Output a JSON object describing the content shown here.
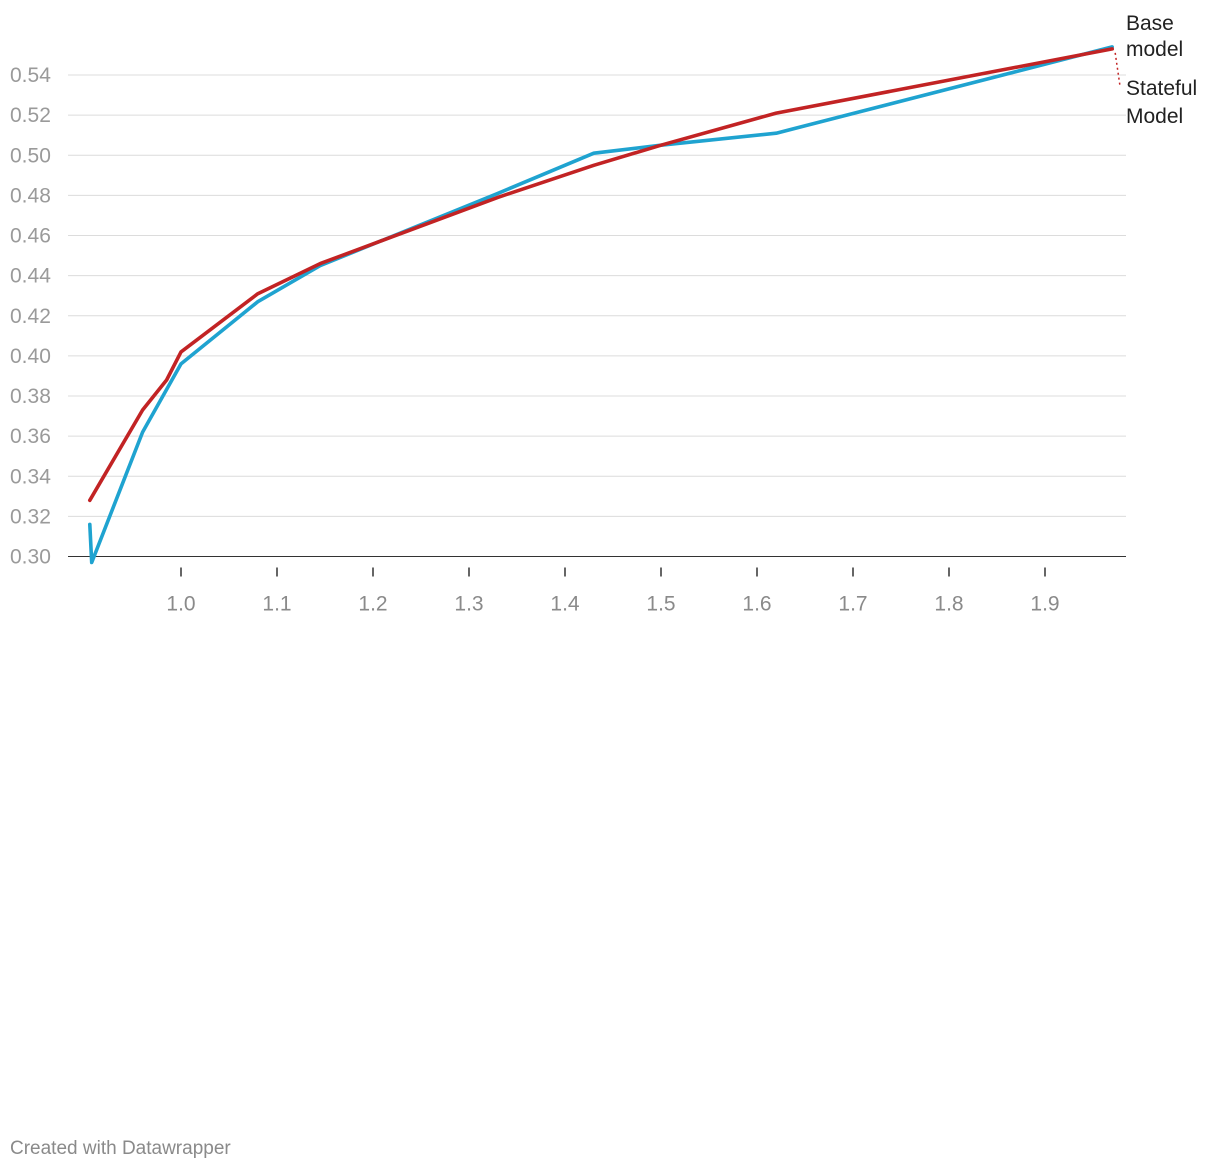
{
  "chart_data": {
    "type": "line",
    "title": "",
    "xlabel": "",
    "ylabel": "",
    "xlim": [
      0.91,
      1.97
    ],
    "ylim": [
      0.298,
      0.556
    ],
    "x_ticks": [
      1.0,
      1.1,
      1.2,
      1.3,
      1.4,
      1.5,
      1.6,
      1.7,
      1.8,
      1.9
    ],
    "x_tick_labels": [
      "1.0",
      "1.1",
      "1.2",
      "1.3",
      "1.4",
      "1.5",
      "1.6",
      "1.7",
      "1.8",
      "1.9"
    ],
    "y_ticks": [
      0.3,
      0.32,
      0.34,
      0.36,
      0.38,
      0.4,
      0.42,
      0.44,
      0.46,
      0.48,
      0.5,
      0.52,
      0.54
    ],
    "y_tick_labels": [
      "0.30",
      "0.32",
      "0.34",
      "0.36",
      "0.38",
      "0.40",
      "0.42",
      "0.44",
      "0.46",
      "0.48",
      "0.50",
      "0.52",
      "0.54"
    ],
    "grid": true,
    "series": [
      {
        "name": "Base model",
        "label_lines": [
          "Base",
          "model"
        ],
        "color": "#1fa3d0",
        "x": [
          0.905,
          0.907,
          0.96,
          1.0,
          1.08,
          1.145,
          1.33,
          1.43,
          1.5,
          1.62,
          1.97
        ],
        "y": [
          0.316,
          0.297,
          0.362,
          0.396,
          0.427,
          0.445,
          0.481,
          0.501,
          0.505,
          0.511,
          0.554
        ]
      },
      {
        "name": "Stateful Model",
        "label_lines": [
          "Stateful",
          "Model"
        ],
        "color": "#c22324",
        "x": [
          0.905,
          0.96,
          0.985,
          1.0,
          1.08,
          1.145,
          1.33,
          1.43,
          1.5,
          1.62,
          1.97
        ],
        "y": [
          0.328,
          0.373,
          0.388,
          0.402,
          0.431,
          0.446,
          0.479,
          0.495,
          0.505,
          0.521,
          0.553
        ]
      }
    ]
  },
  "footer": {
    "credit": "Created with Datawrapper"
  }
}
